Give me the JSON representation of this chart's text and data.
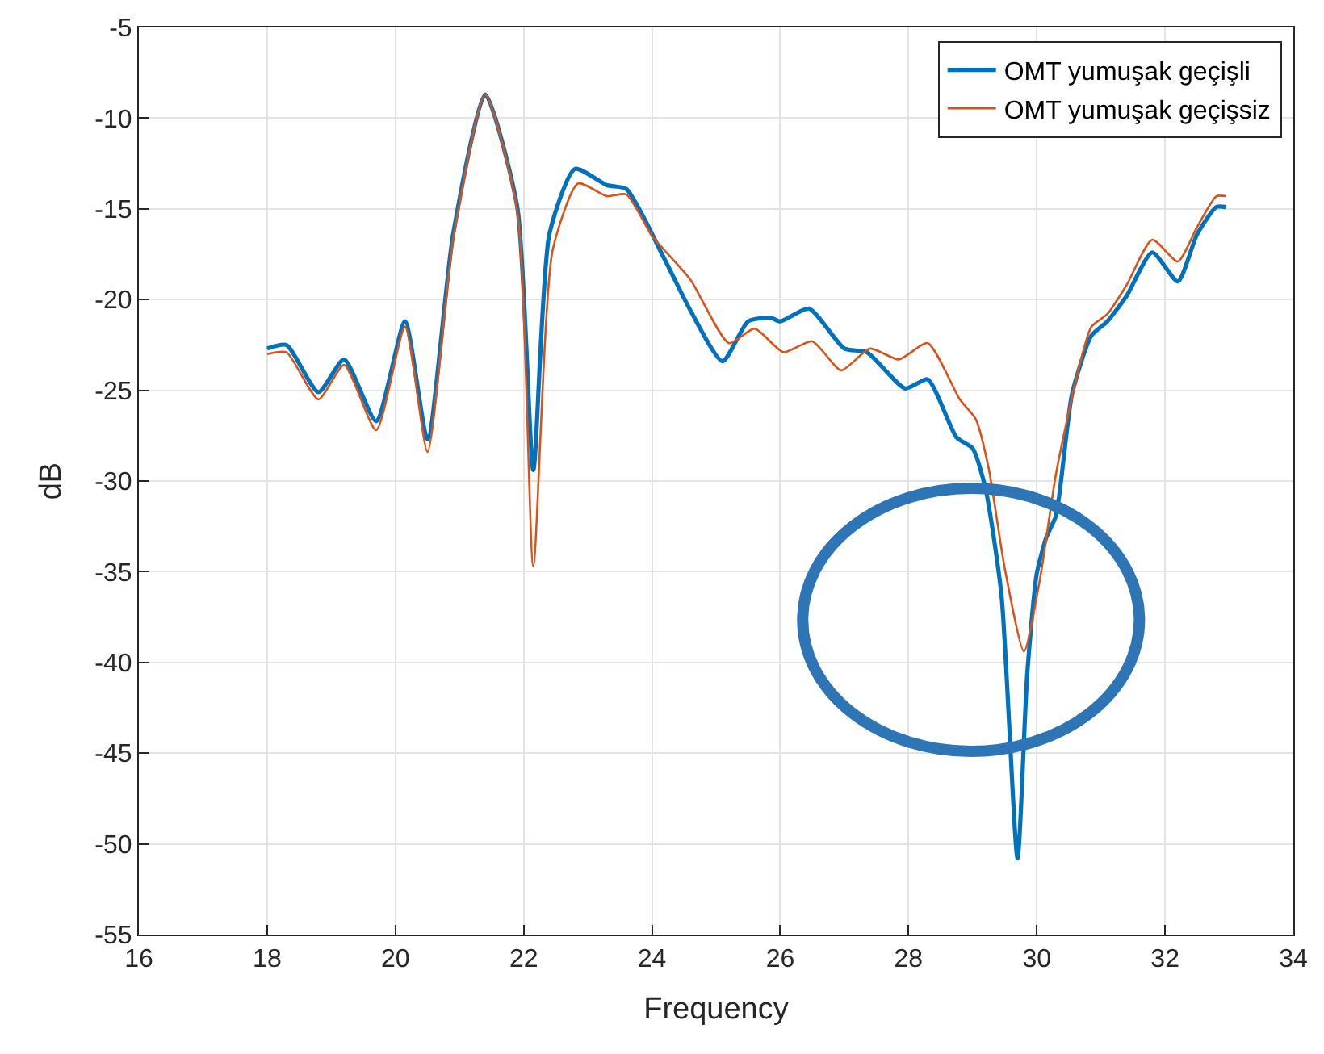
{
  "chart_data": {
    "type": "line",
    "xlabel": "Frequency",
    "ylabel": "dB",
    "xlim": [
      16,
      34
    ],
    "xticks": [
      16,
      18,
      20,
      22,
      24,
      26,
      28,
      30,
      32,
      34
    ],
    "ylim": [
      -55,
      -5
    ],
    "yticks": [
      -55,
      -50,
      -45,
      -40,
      -35,
      -30,
      -25,
      -20,
      -15,
      -10,
      -5
    ],
    "grid": true,
    "legend": "top right",
    "series": [
      {
        "name": "OMT yumuşak geçişli",
        "color": "#0072bd",
        "x": [
          18.0,
          18.3,
          18.8,
          19.2,
          19.7,
          20.15,
          20.5,
          20.9,
          21.4,
          21.9,
          22.15,
          22.4,
          22.8,
          23.3,
          23.6,
          24.2,
          24.6,
          25.1,
          25.5,
          25.85,
          26.0,
          26.45,
          27.0,
          27.35,
          27.95,
          28.3,
          28.75,
          29.0,
          29.2,
          29.45,
          29.7,
          29.85,
          30.0,
          30.15,
          30.3,
          30.55,
          30.85,
          31.1,
          31.4,
          31.8,
          32.2,
          32.5,
          32.8,
          32.95
        ],
        "values": [
          -22.7,
          -22.5,
          -25.1,
          -23.3,
          -26.7,
          -21.2,
          -27.7,
          -16.4,
          -8.7,
          -14.9,
          -29.4,
          -16.4,
          -12.8,
          -13.7,
          -13.9,
          -17.8,
          -20.6,
          -23.4,
          -21.2,
          -21.0,
          -21.2,
          -20.5,
          -22.7,
          -22.9,
          -24.9,
          -24.4,
          -27.6,
          -28.2,
          -30.4,
          -36.3,
          -50.8,
          -40.7,
          -35.1,
          -33.1,
          -31.9,
          -25.2,
          -22.0,
          -21.2,
          -19.8,
          -17.4,
          -19.0,
          -16.4,
          -14.9,
          -14.9
        ]
      },
      {
        "name": "OMT yumuşak geçişsiz",
        "color": "#d95319",
        "x": [
          18.0,
          18.3,
          18.8,
          19.2,
          19.7,
          20.15,
          20.5,
          20.9,
          21.4,
          21.9,
          22.15,
          22.45,
          22.85,
          23.3,
          23.6,
          24.0,
          24.2,
          24.6,
          25.2,
          25.6,
          26.05,
          26.5,
          26.95,
          27.4,
          27.85,
          28.3,
          28.8,
          29.05,
          29.25,
          29.5,
          29.8,
          30.05,
          30.3,
          30.6,
          30.85,
          31.1,
          31.4,
          31.8,
          32.2,
          32.5,
          32.8,
          32.95
        ],
        "values": [
          -23.0,
          -22.9,
          -25.5,
          -23.6,
          -27.2,
          -21.5,
          -28.4,
          -16.7,
          -8.7,
          -15.1,
          -34.7,
          -17.3,
          -13.6,
          -14.3,
          -14.2,
          -16.5,
          -17.3,
          -18.9,
          -22.4,
          -21.6,
          -22.9,
          -22.3,
          -23.9,
          -22.7,
          -23.3,
          -22.4,
          -25.5,
          -26.6,
          -29.3,
          -34.8,
          -39.4,
          -35.4,
          -29.6,
          -24.6,
          -21.5,
          -20.8,
          -19.2,
          -16.7,
          -17.9,
          -16.0,
          -14.3,
          -14.3
        ]
      }
    ]
  }
}
